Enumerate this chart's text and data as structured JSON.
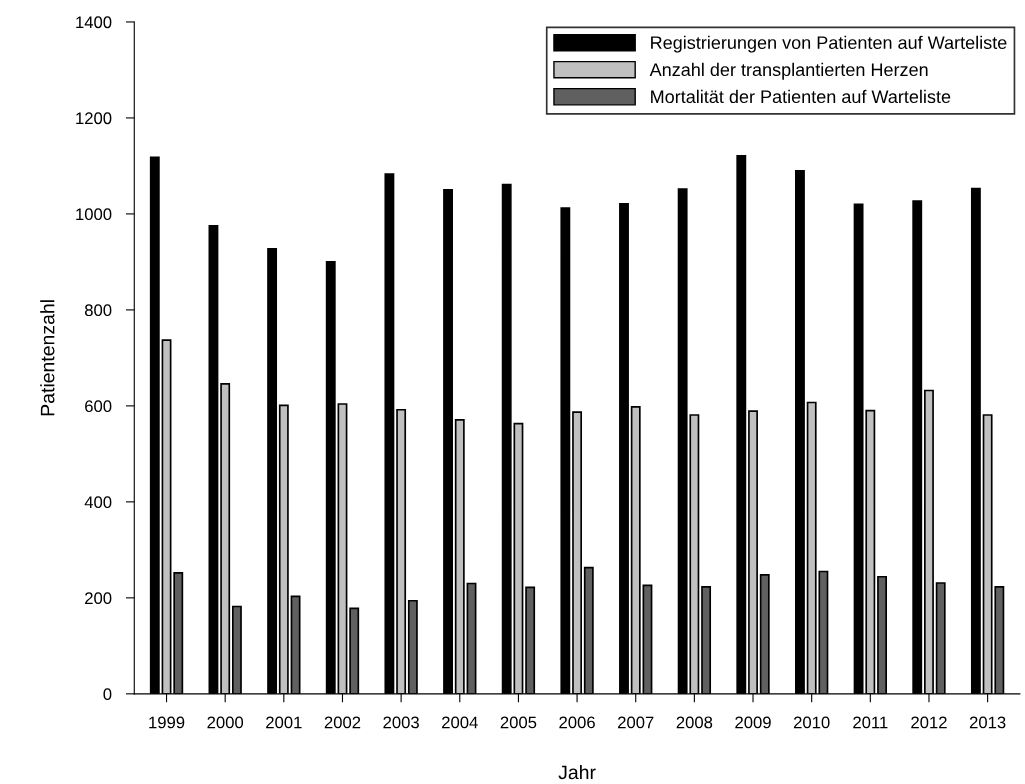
{
  "chart_data": {
    "type": "bar",
    "xlabel": "Jahr",
    "ylabel": "Patientenzahl",
    "categories": [
      "1999",
      "2000",
      "2001",
      "2002",
      "2003",
      "2004",
      "2005",
      "2006",
      "2007",
      "2008",
      "2009",
      "2010",
      "2011",
      "2012",
      "2013"
    ],
    "series": [
      {
        "name": "Registrierungen von Patienten auf Warteliste",
        "color": "#000000",
        "values": [
          1118,
          975,
          927,
          900,
          1083,
          1050,
          1061,
          1012,
          1021,
          1052,
          1121,
          1090,
          1020,
          1027,
          1053
        ]
      },
      {
        "name": "Anzahl der transplantierten Herzen",
        "color": "#c0c0c0",
        "values": [
          737,
          646,
          601,
          604,
          592,
          571,
          563,
          587,
          598,
          581,
          589,
          607,
          590,
          632,
          581
        ]
      },
      {
        "name": "Mortalität der Patienten auf Warteliste",
        "color": "#606060",
        "values": [
          252,
          182,
          203,
          178,
          194,
          230,
          222,
          263,
          226,
          223,
          248,
          255,
          244,
          231,
          223
        ]
      }
    ],
    "ylim": [
      0,
      1400
    ],
    "yticks": [
      0,
      200,
      400,
      600,
      800,
      1000,
      1200,
      1400
    ],
    "grid": false,
    "legend": "top right"
  }
}
